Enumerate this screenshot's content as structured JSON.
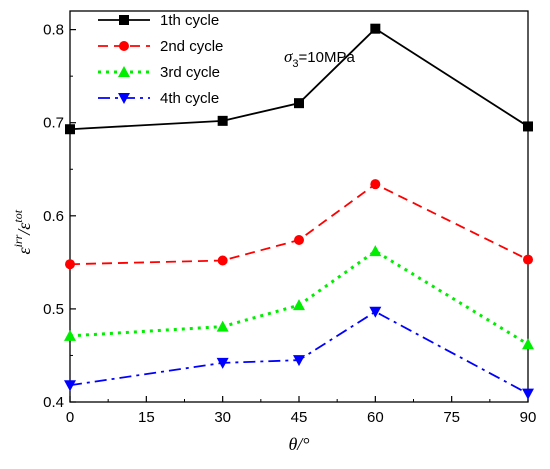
{
  "chart_data": {
    "type": "line",
    "x": [
      0,
      30,
      45,
      60,
      90
    ],
    "xticks": [
      "0",
      "15",
      "30",
      "45",
      "60",
      "75",
      "90"
    ],
    "xtick_values": [
      0,
      15,
      30,
      45,
      60,
      75,
      90
    ],
    "yticks": [
      "0.4",
      "0.5",
      "0.6",
      "0.7",
      "0.8"
    ],
    "ytick_values": [
      0.4,
      0.5,
      0.6,
      0.7,
      0.8
    ],
    "xlim": [
      0,
      90
    ],
    "ylim": [
      0.4,
      0.82
    ],
    "xlabel": "θ/°",
    "ylabel_main": "ε",
    "ylabel_sup1": "irr",
    "ylabel_slash": "/ε",
    "ylabel_sup2": "tot",
    "annotation": {
      "sigma": "σ",
      "sub": "3",
      "value": "=10MPa"
    },
    "legend_position": "top-left",
    "series": [
      {
        "name": "1th cycle",
        "color": "#000000",
        "dash": "solid",
        "marker": "square",
        "values": [
          0.693,
          0.702,
          0.721,
          0.801,
          0.696
        ]
      },
      {
        "name": "2nd cycle",
        "color": "#ff0000",
        "dash": "dash",
        "marker": "circle",
        "values": [
          0.548,
          0.552,
          0.574,
          0.634,
          0.553
        ]
      },
      {
        "name": "3rd cycle",
        "color": "#00ee00",
        "dash": "dot",
        "marker": "triangle-up",
        "values": [
          0.471,
          0.481,
          0.504,
          0.562,
          0.462
        ]
      },
      {
        "name": "4th cycle",
        "color": "#0000ff",
        "dash": "dashdot",
        "marker": "triangle-down",
        "values": [
          0.418,
          0.442,
          0.445,
          0.497,
          0.409
        ]
      }
    ]
  }
}
